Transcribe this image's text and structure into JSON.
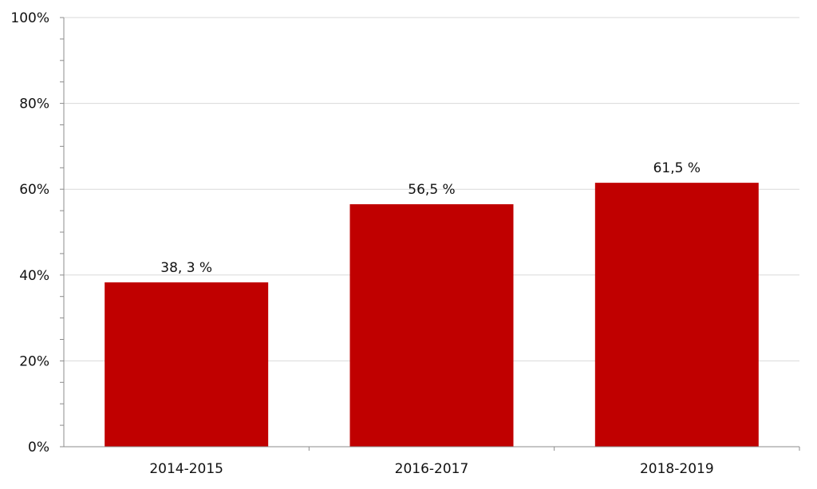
{
  "chart_data": {
    "type": "bar",
    "categories": [
      "2014-2015",
      "2016-2017",
      "2018-2019"
    ],
    "values": [
      38.3,
      56.5,
      61.5
    ],
    "data_labels": [
      "38, 3 %",
      "56,5 %",
      "61,5 %"
    ],
    "ylim": [
      0,
      100
    ],
    "yticks": [
      0,
      20,
      40,
      60,
      80,
      100
    ],
    "ytick_labels": [
      "0%",
      "20%",
      "40%",
      "60%",
      "80%",
      "100%"
    ],
    "title": "",
    "xlabel": "",
    "ylabel": "",
    "grid": true,
    "legend": "none",
    "bar_color": "#C00000"
  }
}
